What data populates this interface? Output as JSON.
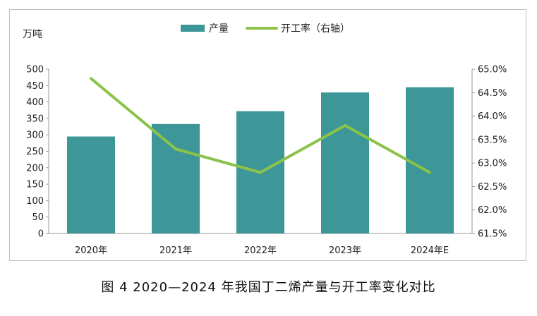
{
  "chart_data": {
    "type": "bar",
    "categories": [
      "2020年",
      "2021年",
      "2022年",
      "2023年",
      "2024年E"
    ],
    "series": [
      {
        "name": "产量",
        "type": "bar",
        "axis": "left",
        "color": "#3d9698",
        "values": [
          295,
          333,
          372,
          429,
          445
        ]
      },
      {
        "name": "开工率（右轴）",
        "type": "line",
        "axis": "right",
        "color": "#8bc34a",
        "values": [
          64.8,
          63.3,
          62.8,
          63.8,
          62.8
        ]
      }
    ],
    "y_left": {
      "unit": "万吨",
      "min": 0,
      "max": 500,
      "step": 50,
      "ticks": [
        "0",
        "50",
        "100",
        "150",
        "200",
        "250",
        "300",
        "350",
        "400",
        "450",
        "500"
      ]
    },
    "y_right": {
      "min": 61.5,
      "max": 65.0,
      "step": 0.5,
      "ticks": [
        "61.5%",
        "62.0%",
        "62.5%",
        "63.0%",
        "63.5%",
        "64.0%",
        "64.5%",
        "65.0%"
      ]
    },
    "legend_position": "top-center",
    "grid": false
  },
  "caption": "图 4 2020—2024 年我国丁二烯产量与开工率变化对比"
}
